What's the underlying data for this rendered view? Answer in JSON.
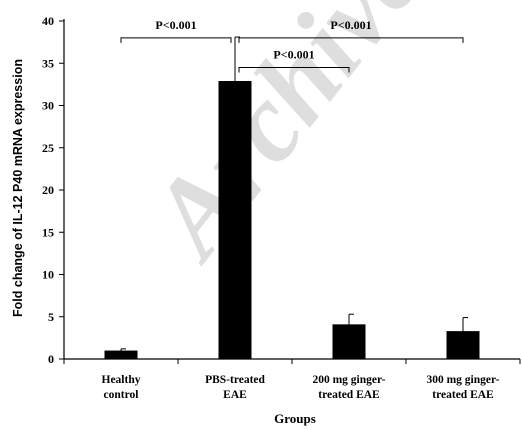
{
  "chart_data": {
    "type": "bar",
    "title": "",
    "xlabel": "Groups",
    "ylabel": "Fold change of IL-12 P40 mRNA expression",
    "ylim": [
      0,
      40
    ],
    "yticks": [
      0,
      5,
      10,
      15,
      20,
      25,
      30,
      35,
      40
    ],
    "categories": [
      [
        "Healthy",
        "control"
      ],
      [
        "PBS-treated",
        "EAE"
      ],
      [
        "200 mg ginger-",
        "treated EAE"
      ],
      [
        "300 mg ginger-",
        "treated EAE"
      ]
    ],
    "values": [
      1.0,
      32.9,
      4.1,
      3.3
    ],
    "errors": [
      0.2,
      5.2,
      1.2,
      1.6
    ],
    "bar_color": "#000000",
    "grid": false,
    "legend": "none",
    "annotations": [
      {
        "text": "P<0.001",
        "from": 0,
        "to": 1,
        "level": 38
      },
      {
        "text": "P<0.001",
        "from": 1,
        "to": 3,
        "level": 38
      },
      {
        "text": "P<0.001",
        "from": 1,
        "to": 2,
        "level": 34.5
      }
    ],
    "watermark": "Archive"
  }
}
